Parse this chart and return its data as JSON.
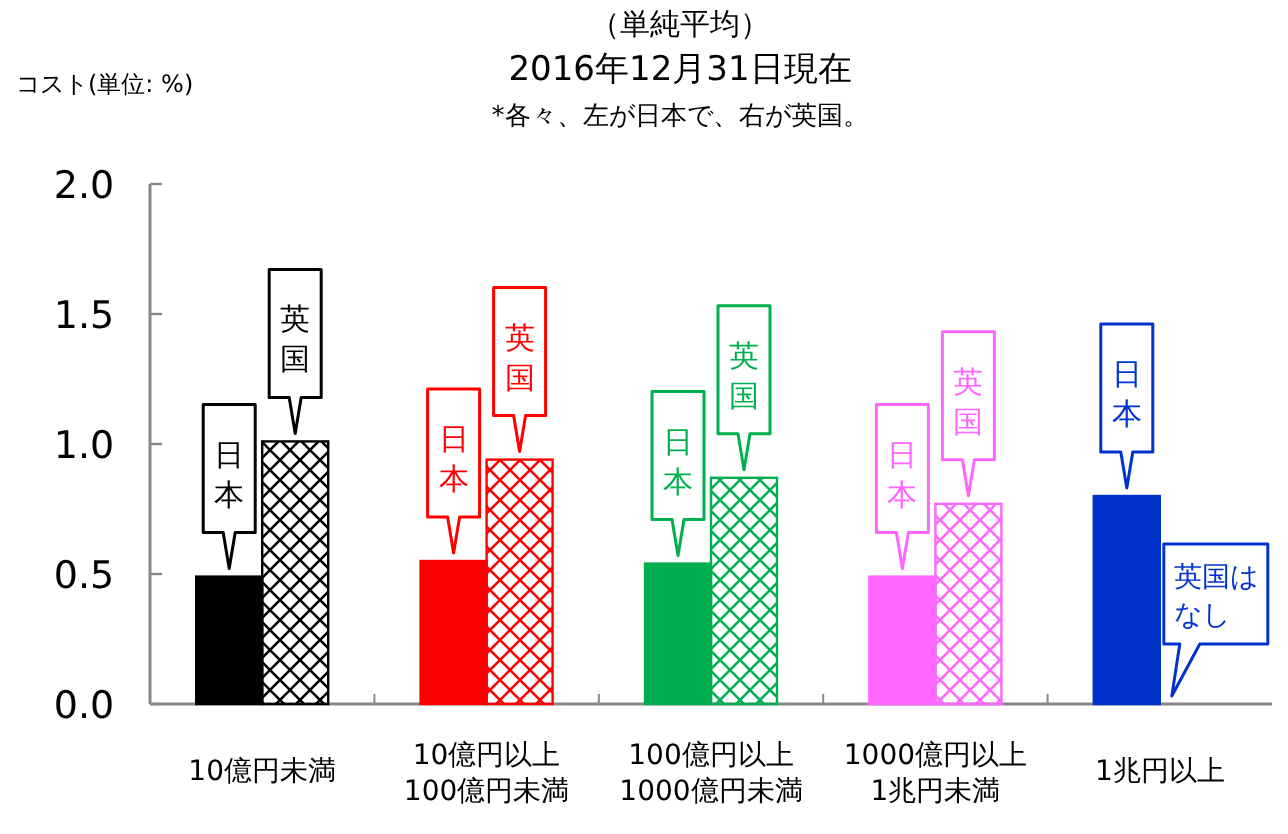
{
  "chart_data": {
    "type": "bar",
    "title": "（単純平均）",
    "subtitle": "2016年12月31日現在",
    "ylabel": "コスト(単位: %)",
    "annotations": [
      "*各々、左が日本で、右が英国。",
      "英国はなし"
    ],
    "categories": [
      "10億円未満",
      "10億円以上\n100億円未満",
      "100億円以上\n1000億円未満",
      "1000億円以上\n1兆円未満",
      "1兆円以上"
    ],
    "series": [
      {
        "name": "日本",
        "colors": [
          "#000000",
          "#ff0000",
          "#00b050",
          "#ff66ff",
          "#0033cc"
        ],
        "values": [
          0.49,
          0.55,
          0.54,
          0.49,
          0.8
        ]
      },
      {
        "name": "英国",
        "colors": [
          "#000000",
          "#ff0000",
          "#00b050",
          "#ff66ff",
          "#0033cc"
        ],
        "values": [
          1.01,
          0.94,
          0.87,
          0.77,
          null
        ]
      }
    ],
    "ylim": [
      0,
      2
    ],
    "yticks": [
      {
        "value": 0,
        "label": "0.0"
      },
      {
        "value": 0.5,
        "label": "0.5"
      },
      {
        "value": 1,
        "label": "1.0"
      },
      {
        "value": 1.5,
        "label": "1.5"
      },
      {
        "value": 2,
        "label": "2.0"
      }
    ],
    "grid": false,
    "legend": false
  }
}
